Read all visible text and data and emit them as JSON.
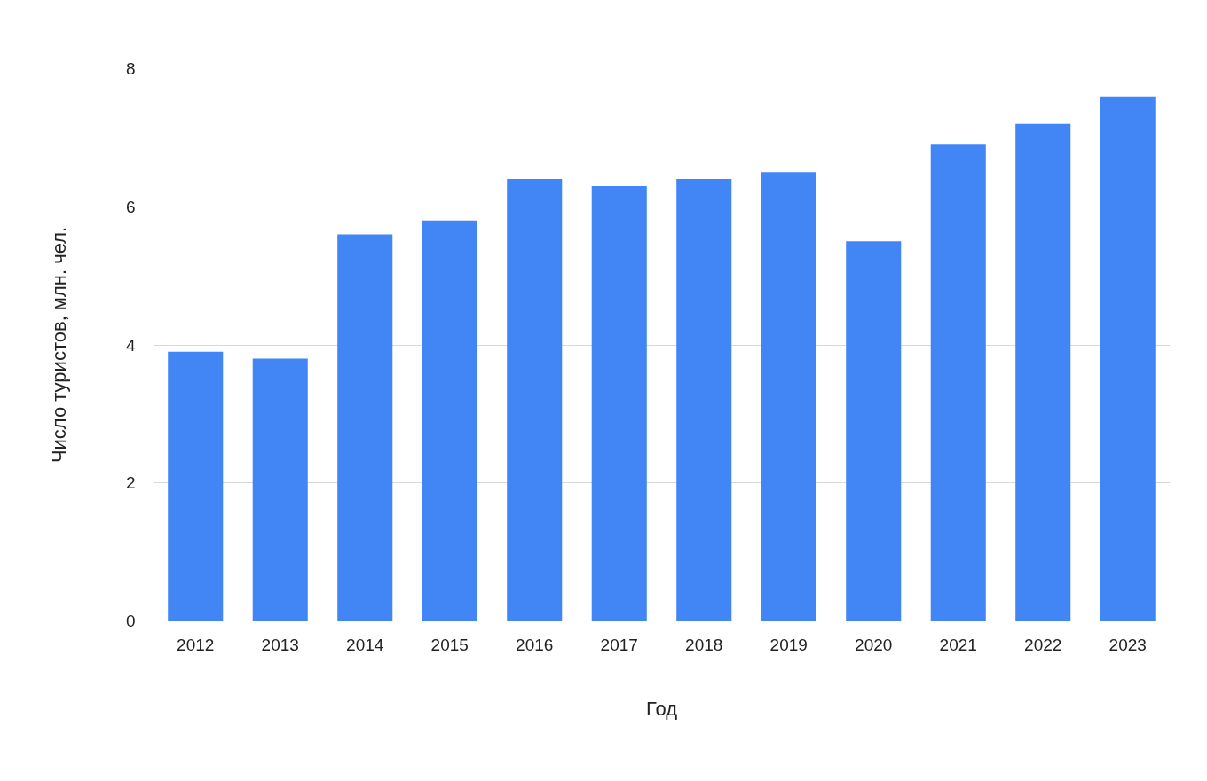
{
  "chart_data": {
    "type": "bar",
    "xlabel": "Год",
    "ylabel": "Число туристов, млн. чел.",
    "categories": [
      "2012",
      "2013",
      "2014",
      "2015",
      "2016",
      "2017",
      "2018",
      "2019",
      "2020",
      "2021",
      "2022",
      "2023"
    ],
    "values": [
      3.9,
      3.8,
      5.6,
      5.8,
      6.4,
      6.3,
      6.4,
      6.5,
      5.5,
      6.9,
      7.2,
      7.6
    ],
    "color": "#4285f4",
    "ylim": [
      0,
      8
    ],
    "yticks": [
      0,
      2,
      4,
      6,
      8
    ],
    "grid": "y"
  }
}
